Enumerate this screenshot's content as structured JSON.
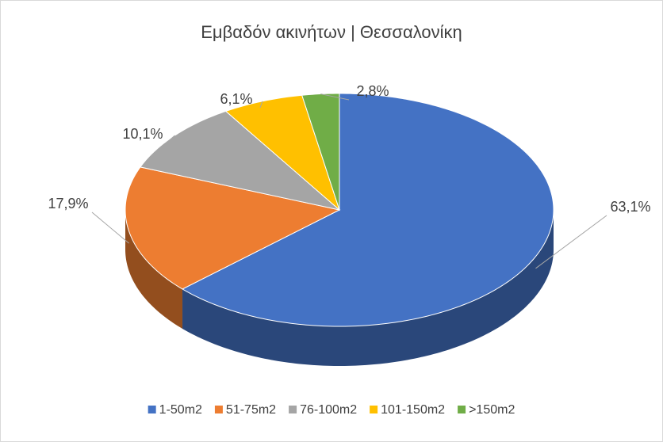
{
  "chart_data": {
    "type": "pie3d",
    "title": "Εμβαδόν ακινήτων | Θεσσαλονίκη",
    "categories": [
      "1-50m2",
      "51-75m2",
      "76-100m2",
      "101-150m2",
      ">150m2"
    ],
    "values": [
      63.1,
      17.9,
      10.1,
      6.1,
      2.8
    ],
    "value_labels": [
      "63,1%",
      "17,9%",
      "10,1%",
      "6,1%",
      "2,8%"
    ],
    "colors": [
      "#4472c4",
      "#ed7d31",
      "#a5a5a5",
      "#ffc000",
      "#70ad47"
    ],
    "legend": "bottom"
  }
}
